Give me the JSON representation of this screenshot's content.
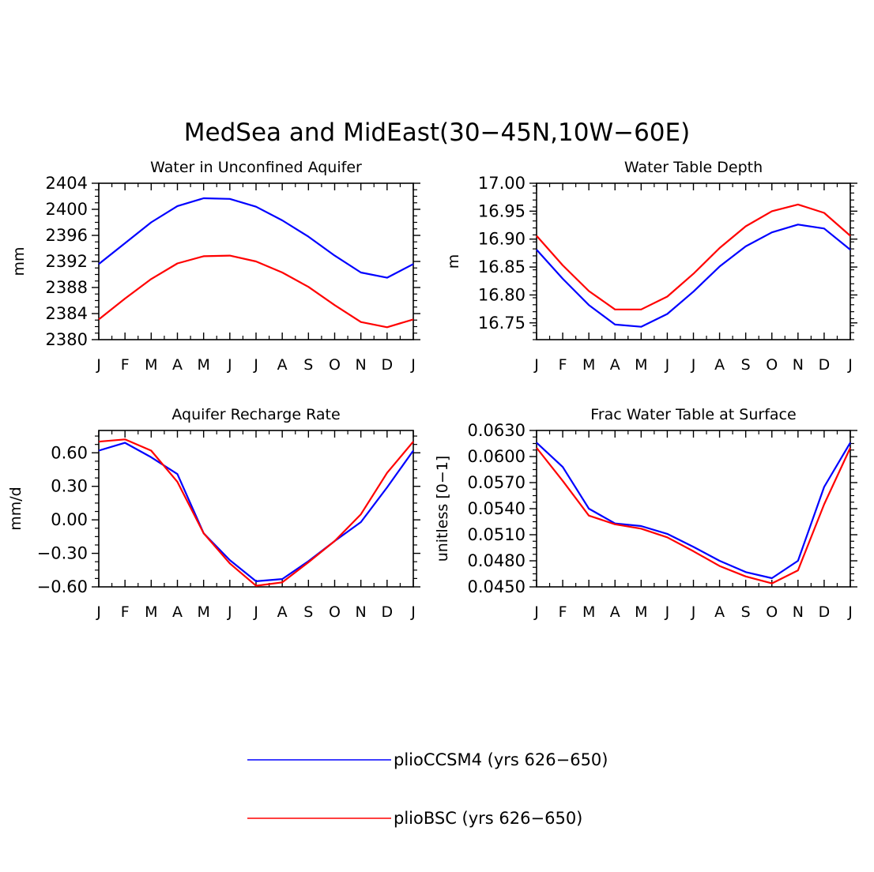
{
  "figure": {
    "title": "MedSea and MidEast(30−45N,10W−60E)"
  },
  "legend": {
    "items": [
      {
        "label": "plioCCSM4 (yrs 626−650)",
        "color": "#0000ff"
      },
      {
        "label": "plioBSC (yrs 626−650)",
        "color": "#ff0000"
      }
    ]
  },
  "chart_data": [
    {
      "type": "line",
      "title": "Water in Unconfined Aquifer",
      "ylabel": "mm",
      "xlabel": "",
      "x": [
        "J",
        "F",
        "M",
        "A",
        "M",
        "J",
        "J",
        "A",
        "S",
        "O",
        "N",
        "D",
        "J"
      ],
      "ylim": [
        2380,
        2404
      ],
      "yticks": [
        2380,
        2384,
        2388,
        2392,
        2396,
        2400,
        2404
      ],
      "ytick_labels": [
        "2380",
        "2384",
        "2388",
        "2392",
        "2396",
        "2400",
        "2404"
      ],
      "grid": false,
      "series": [
        {
          "name": "plioCCSM4 (yrs 626−650)",
          "color": "#0000ff",
          "values": [
            2391.6,
            2394.8,
            2398.0,
            2400.5,
            2401.7,
            2401.6,
            2400.4,
            2398.3,
            2395.8,
            2392.9,
            2390.3,
            2389.5,
            2391.6
          ]
        },
        {
          "name": "plioBSC (yrs 626−650)",
          "color": "#ff0000",
          "values": [
            2383.1,
            2386.3,
            2389.3,
            2391.7,
            2392.8,
            2392.9,
            2392.0,
            2390.3,
            2388.1,
            2385.3,
            2382.7,
            2381.9,
            2383.1
          ]
        }
      ]
    },
    {
      "type": "line",
      "title": "Water Table Depth",
      "ylabel": "m",
      "xlabel": "",
      "x": [
        "J",
        "F",
        "M",
        "A",
        "M",
        "J",
        "J",
        "A",
        "S",
        "O",
        "N",
        "D",
        "J"
      ],
      "ylim": [
        16.72,
        17.0
      ],
      "yticks": [
        16.75,
        16.8,
        16.85,
        16.9,
        16.95,
        17.0
      ],
      "ytick_labels": [
        "16.75",
        "16.80",
        "16.85",
        "16.90",
        "16.95",
        "17.00"
      ],
      "grid": false,
      "series": [
        {
          "name": "plioCCSM4 (yrs 626−650)",
          "color": "#0000ff",
          "values": [
            16.881,
            16.829,
            16.782,
            16.747,
            16.743,
            16.766,
            16.806,
            16.851,
            16.887,
            16.912,
            16.926,
            16.919,
            16.881
          ]
        },
        {
          "name": "plioBSC (yrs 626−650)",
          "color": "#ff0000",
          "values": [
            16.906,
            16.853,
            16.807,
            16.774,
            16.774,
            16.797,
            16.838,
            16.884,
            16.923,
            16.95,
            16.962,
            16.947,
            16.906
          ]
        }
      ]
    },
    {
      "type": "line",
      "title": "Aquifer Recharge Rate",
      "ylabel": "mm/d",
      "xlabel": "",
      "x": [
        "J",
        "F",
        "M",
        "A",
        "M",
        "J",
        "J",
        "A",
        "S",
        "O",
        "N",
        "D",
        "J"
      ],
      "ylim": [
        -0.6,
        0.8
      ],
      "yticks": [
        -0.6,
        -0.3,
        0.0,
        0.3,
        0.6
      ],
      "ytick_labels": [
        "−0.60",
        "−0.30",
        "0.00",
        "0.30",
        "0.60"
      ],
      "grid": false,
      "series": [
        {
          "name": "plioCCSM4 (yrs 626−650)",
          "color": "#0000ff",
          "values": [
            0.62,
            0.69,
            0.56,
            0.41,
            -0.12,
            -0.36,
            -0.55,
            -0.53,
            -0.37,
            -0.19,
            -0.02,
            0.29,
            0.62
          ]
        },
        {
          "name": "plioBSC (yrs 626−650)",
          "color": "#ff0000",
          "values": [
            0.7,
            0.72,
            0.62,
            0.34,
            -0.12,
            -0.39,
            -0.59,
            -0.56,
            -0.38,
            -0.19,
            0.05,
            0.42,
            0.7
          ]
        }
      ]
    },
    {
      "type": "line",
      "title": "Frac Water Table at Surface",
      "ylabel": "unitless [0−1]",
      "xlabel": "",
      "x": [
        "J",
        "F",
        "M",
        "A",
        "M",
        "J",
        "J",
        "A",
        "S",
        "O",
        "N",
        "D",
        "J"
      ],
      "ylim": [
        0.045,
        0.063
      ],
      "yticks": [
        0.045,
        0.048,
        0.051,
        0.054,
        0.057,
        0.06,
        0.063
      ],
      "ytick_labels": [
        "0.0450",
        "0.0480",
        "0.0510",
        "0.0540",
        "0.0570",
        "0.0600",
        "0.0630"
      ],
      "grid": false,
      "series": [
        {
          "name": "plioCCSM4 (yrs 626−650)",
          "color": "#0000ff",
          "values": [
            0.0616,
            0.0588,
            0.054,
            0.0523,
            0.052,
            0.0511,
            0.0496,
            0.048,
            0.0467,
            0.046,
            0.048,
            0.0565,
            0.0616
          ]
        },
        {
          "name": "plioBSC (yrs 626−650)",
          "color": "#ff0000",
          "values": [
            0.061,
            0.0572,
            0.0532,
            0.0522,
            0.0517,
            0.0507,
            0.0491,
            0.0474,
            0.0462,
            0.0454,
            0.0469,
            0.0545,
            0.061
          ]
        }
      ]
    }
  ]
}
